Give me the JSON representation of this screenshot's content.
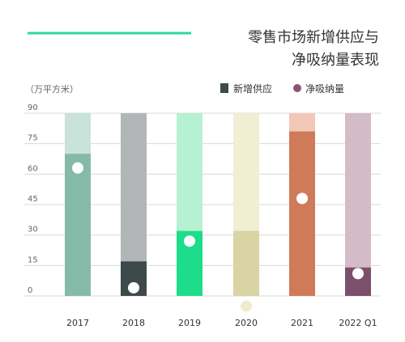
{
  "chart_data": {
    "type": "bar",
    "title_lines": [
      "零售市场新增供应与",
      "净吸纳量表现"
    ],
    "unit_label": "（万平方米）",
    "legend": {
      "supply_label": "新增供应",
      "absorption_label": "净吸纳量"
    },
    "ylim": [
      0,
      90
    ],
    "yticks": [
      0,
      15,
      30,
      45,
      60,
      75,
      90
    ],
    "categories": [
      "2017",
      "2018",
      "2019",
      "2020",
      "2021",
      "2022 Q1"
    ],
    "series": [
      {
        "name": "新增供应",
        "values": [
          70,
          17,
          32,
          32,
          81,
          14
        ]
      },
      {
        "name": "净吸纳量",
        "values": [
          63,
          4,
          27,
          -5,
          48,
          11
        ]
      }
    ],
    "colors": {
      "bars": [
        {
          "solid": "#85baa9",
          "light": "#c9e2da"
        },
        {
          "solid": "#3d4a4b",
          "light": "#b2b6b7"
        },
        {
          "solid": "#1ddc8a",
          "light": "#b6f1d3"
        },
        {
          "solid": "#d9d4a3",
          "light": "#f1eed3"
        },
        {
          "solid": "#cf7a58",
          "light": "#f2c7b5"
        },
        {
          "solid": "#7c4f6a",
          "light": "#d4bcc6"
        }
      ],
      "dots": [
        "#ffffff",
        "#ffffff",
        "#ffffff",
        "#eeeccf",
        "#ffffff",
        "#ffffff"
      ],
      "accent_line": "#2fd6a3",
      "legend_supply": "#3d4a4b",
      "legend_absorption": "#8a5572",
      "grid": "#d9d9d9"
    }
  }
}
